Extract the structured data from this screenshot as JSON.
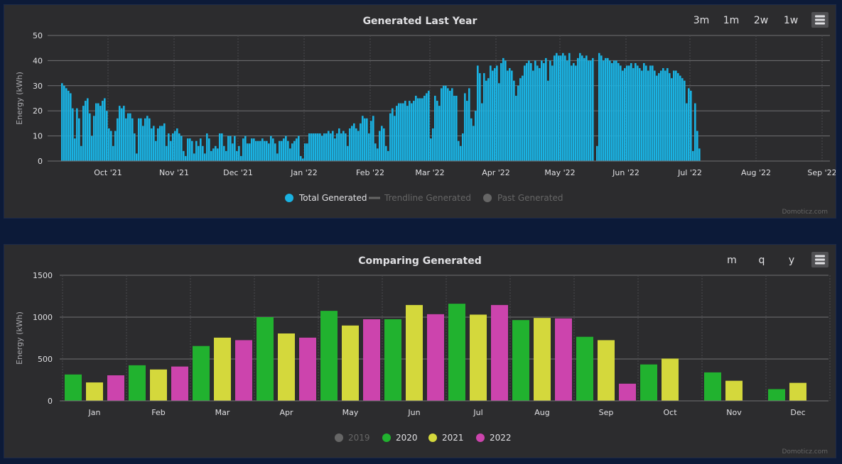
{
  "chart_data": [
    {
      "type": "bar",
      "title": "Generated Last Year",
      "ylabel": "Energy (kWh)",
      "ylim": [
        0,
        50
      ],
      "yticks": [
        0,
        10,
        20,
        30,
        40,
        50
      ],
      "xticks": [
        "Oct '21",
        "Nov '21",
        "Dec '21",
        "Jan '22",
        "Feb '22",
        "Mar '22",
        "Apr '22",
        "May '22",
        "Jun '22",
        "Jul '22",
        "Aug '22",
        "Sep '22"
      ],
      "x_start": "2021-09-09",
      "x_end": "2022-09-08",
      "grid": true,
      "legend_position": "bottom-center",
      "range_buttons": [
        "3m",
        "1m",
        "2w",
        "1w"
      ],
      "credit": "Domoticz.com",
      "colors": {
        "bar": "#1ab2e2"
      },
      "legend": [
        {
          "name": "Total Generated",
          "active": true,
          "marker": "circle",
          "color": "#1ab2e2"
        },
        {
          "name": "Trendline Generated",
          "active": false,
          "marker": "line",
          "color": "#666666"
        },
        {
          "name": "Past Generated",
          "active": false,
          "marker": "circle",
          "color": "#666666"
        }
      ],
      "series": [
        {
          "name": "Total Generated",
          "values": [
            31,
            30,
            29,
            28,
            27,
            21,
            9,
            21,
            17,
            6,
            22,
            24,
            25,
            19,
            10,
            18,
            23,
            23,
            22,
            24,
            25,
            20,
            13,
            12,
            6,
            12,
            17,
            22,
            21,
            22,
            17,
            19,
            19,
            17,
            11,
            3,
            17,
            17,
            14,
            17,
            18,
            17,
            13,
            14,
            8,
            13,
            14,
            14,
            15,
            6,
            11,
            8,
            11,
            12,
            13,
            11,
            10,
            4,
            2,
            9,
            9,
            8,
            3,
            8,
            6,
            9,
            6,
            3,
            11,
            9,
            4,
            5,
            6,
            5,
            11,
            11,
            6,
            4,
            10,
            10,
            7,
            10,
            4,
            6,
            2,
            9,
            10,
            7,
            7,
            9,
            9,
            8,
            8,
            8,
            9,
            8,
            8,
            7,
            10,
            9,
            7,
            3,
            8,
            8,
            9,
            10,
            8,
            5,
            7,
            8,
            9,
            10,
            2,
            1,
            7,
            7,
            11,
            11,
            11,
            11,
            11,
            11,
            10,
            11,
            11,
            12,
            11,
            12,
            9,
            11,
            13,
            11,
            12,
            11,
            6,
            13,
            14,
            15,
            13,
            12,
            15,
            18,
            17,
            17,
            11,
            16,
            18,
            7,
            5,
            12,
            14,
            13,
            6,
            4,
            19,
            21,
            18,
            22,
            23,
            23,
            23,
            24,
            22,
            24,
            23,
            24,
            26,
            25,
            25,
            25,
            26,
            27,
            28,
            9,
            13,
            26,
            24,
            22,
            29,
            30,
            30,
            29,
            28,
            29,
            26,
            26,
            8,
            6,
            11,
            27,
            24,
            29,
            17,
            14,
            20,
            38,
            35,
            23,
            35,
            32,
            33,
            38,
            36,
            37,
            38,
            31,
            39,
            41,
            40,
            36,
            37,
            36,
            32,
            26,
            30,
            33,
            34,
            38,
            39,
            40,
            39,
            36,
            40,
            38,
            37,
            40,
            39,
            41,
            32,
            40,
            38,
            42,
            43,
            42,
            42,
            43,
            42,
            40,
            43,
            38,
            39,
            38,
            41,
            43,
            42,
            41,
            42,
            40,
            40,
            41,
            0,
            6,
            43,
            42,
            40,
            41,
            41,
            40,
            39,
            40,
            40,
            39,
            38,
            36,
            37,
            38,
            38,
            39,
            37,
            39,
            38,
            37,
            36,
            39,
            38,
            36,
            38,
            38,
            36,
            34,
            35,
            36,
            37,
            36,
            37,
            35,
            33,
            36,
            36,
            35,
            34,
            33,
            32,
            23,
            29,
            28,
            4,
            23,
            12,
            5
          ]
        }
      ]
    },
    {
      "type": "bar",
      "title": "Comparing Generated",
      "ylabel": "Energy (kWh)",
      "ylim": [
        0,
        1500
      ],
      "yticks": [
        0,
        500,
        1000,
        1500
      ],
      "categories": [
        "Jan",
        "Feb",
        "Mar",
        "Apr",
        "May",
        "Jun",
        "Jul",
        "Aug",
        "Sep",
        "Oct",
        "Nov",
        "Dec"
      ],
      "grid": true,
      "legend_position": "bottom-center",
      "range_buttons": [
        "m",
        "q",
        "y"
      ],
      "credit": "Domoticz.com",
      "series": [
        {
          "name": "2019",
          "active": false,
          "color": "#666666",
          "values": [
            null,
            null,
            null,
            null,
            null,
            null,
            null,
            null,
            null,
            null,
            null,
            null
          ]
        },
        {
          "name": "2020",
          "active": true,
          "color": "#21b22f",
          "values": [
            315,
            425,
            655,
            1000,
            1075,
            975,
            1160,
            965,
            765,
            435,
            340,
            140
          ]
        },
        {
          "name": "2021",
          "active": true,
          "color": "#d4d83c",
          "values": [
            220,
            375,
            755,
            805,
            900,
            1145,
            1030,
            990,
            725,
            505,
            240,
            215
          ]
        },
        {
          "name": "2022",
          "active": true,
          "color": "#cc44ad",
          "values": [
            305,
            410,
            725,
            755,
            975,
            1035,
            1145,
            985,
            205,
            null,
            null,
            null
          ]
        }
      ]
    }
  ],
  "menu_icon": "hamburger-menu-icon"
}
